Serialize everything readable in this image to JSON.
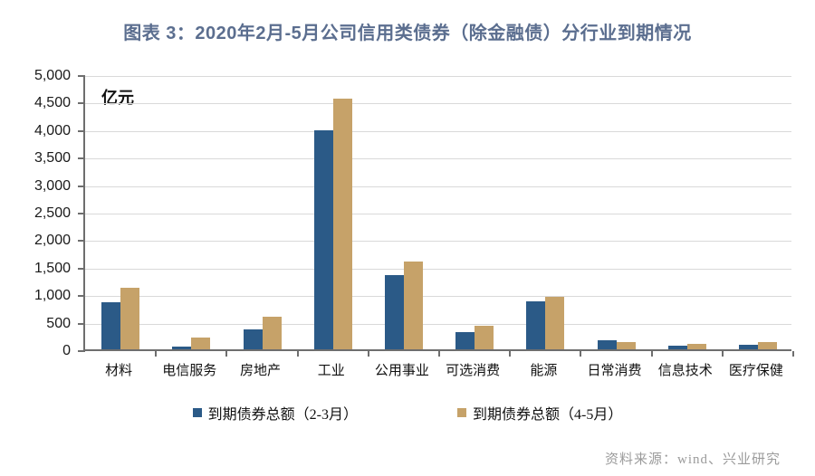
{
  "title": "图表 3：2020年2月-5月公司信用类债券（除金融债）分行业到期情况",
  "source": "资料来源：wind、兴业研究",
  "colors": {
    "title": "#5b6e8f",
    "series1": "#2b5a87",
    "series2": "#c6a269",
    "gridline": "#d9d9d9",
    "axis": "#6e6e6e",
    "source_text": "#9b9b9b"
  },
  "chart_data": {
    "type": "bar",
    "title": "图表 3：2020年2月-5月公司信用类债券（除金融债）分行业到期情况",
    "unit_label": "亿元",
    "xlabel": "",
    "ylabel": "亿元",
    "ylim": [
      0,
      5000
    ],
    "y_tick_step": 500,
    "y_tick_labels": [
      "0",
      "500",
      "1,000",
      "1,500",
      "2,000",
      "2,500",
      "3,000",
      "3,500",
      "4,000",
      "4,500",
      "5,000"
    ],
    "grid": "horizontal",
    "legend_position": "bottom",
    "categories": [
      "材料",
      "电信服务",
      "房地产",
      "工业",
      "公用事业",
      "可选消费",
      "能源",
      "日常消费",
      "信息技术",
      "医疗保健"
    ],
    "series": [
      {
        "name": "到期债券总额（2-3月）",
        "color": "#2b5a87",
        "values": [
          850,
          50,
          370,
          3980,
          1350,
          310,
          870,
          170,
          70,
          85
        ]
      },
      {
        "name": "到期债券总额（4-5月）",
        "color": "#c6a269",
        "values": [
          1120,
          210,
          590,
          4550,
          1600,
          420,
          960,
          130,
          105,
          135
        ]
      }
    ]
  }
}
